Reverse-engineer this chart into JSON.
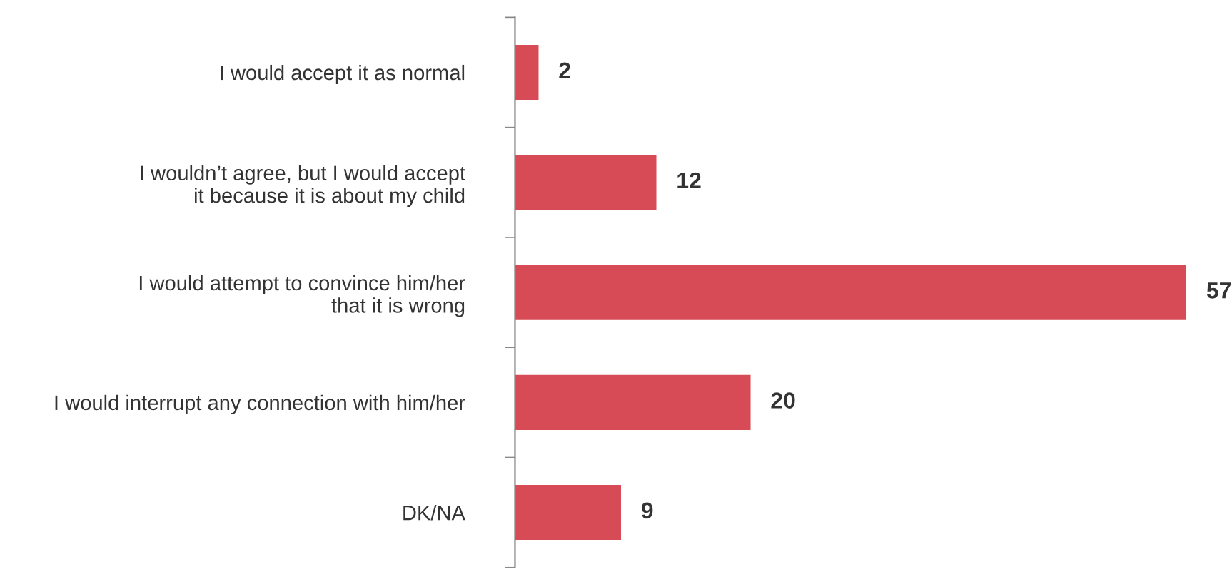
{
  "chart_data": {
    "type": "bar",
    "orientation": "horizontal",
    "categories": [
      "I would accept it as normal",
      "I wouldn’t agree, but I would accept\nit because it is about my child",
      "I would attempt to convince him/her\nthat it is wrong",
      "I would interrupt any connection with him/her",
      "DK/NA"
    ],
    "values": [
      2,
      12,
      57,
      20,
      9
    ],
    "color": "#d64b55",
    "data_labels": true,
    "grid": false,
    "legend": false
  }
}
